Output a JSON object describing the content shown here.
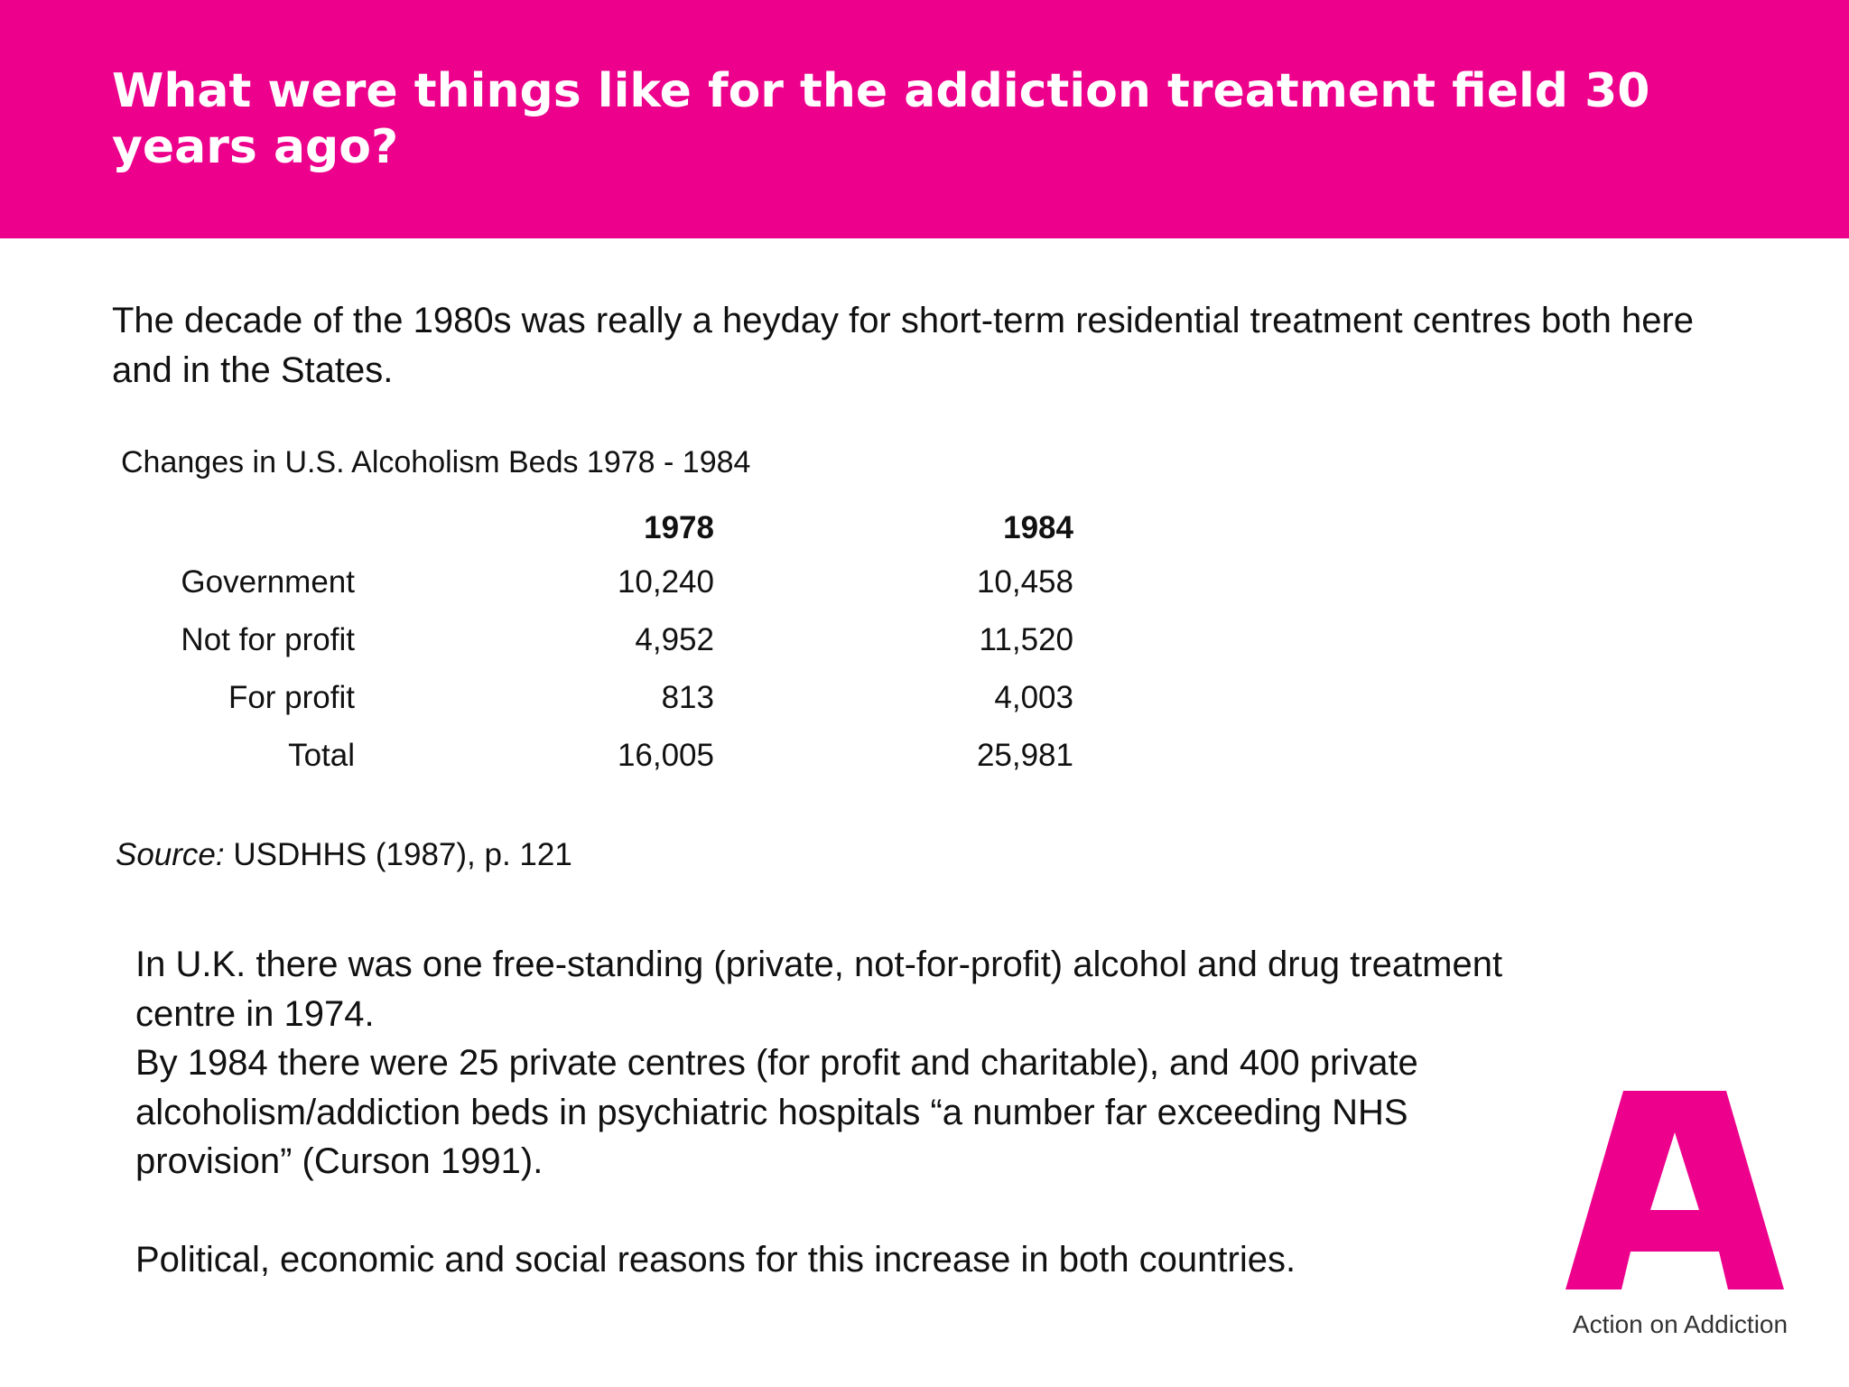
{
  "slide": {
    "title": "What were things like for the addiction treatment field 30 years ago?",
    "intro": "The decade of the 1980s was really a heyday for short-term residential treatment centres both here and in the States."
  },
  "table": {
    "caption": "Changes in U.S. Alcoholism Beds 1978 - 1984",
    "headers": [
      "1978",
      "1984"
    ],
    "rows": [
      {
        "label": "Government",
        "v1978": "10,240",
        "v1984": "10,458"
      },
      {
        "label": "Not for profit",
        "v1978": "4,952",
        "v1984": "11,520"
      },
      {
        "label": "For profit",
        "v1978": "813",
        "v1984": "4,003"
      },
      {
        "label": "Total",
        "v1978": "16,005",
        "v1984": "25,981"
      }
    ]
  },
  "source": {
    "label": "Source:",
    "text": " USDHHS (1987), p. 121"
  },
  "body": {
    "para1": "In U.K. there was one free-standing (private, not-for-profit) alcohol and drug treatment centre in 1974.",
    "para2": "By 1984 there were 25 private centres (for profit and charitable), and 400 private alcoholism/addiction beds in psychiatric hospitals “a number far exceeding NHS provision” (Curson 1991).",
    "para3": "Political, economic and social reasons for this increase in both countries."
  },
  "logo": {
    "text": "Action on Addiction",
    "color": "#ec008c"
  },
  "colors": {
    "accent": "#ec008c"
  }
}
